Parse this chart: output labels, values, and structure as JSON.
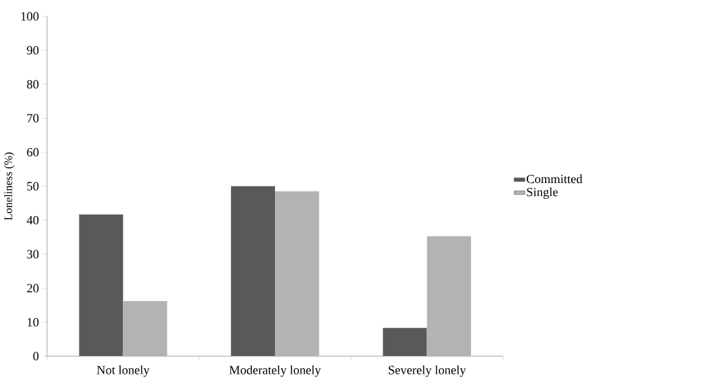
{
  "chart_data": {
    "type": "bar",
    "ylabel": "Loneliness (%)",
    "categories": [
      "Not lonely",
      "Moderately lonely",
      "Severely lonely"
    ],
    "series": [
      {
        "name": "Committed",
        "color": "#595959",
        "values": [
          41.7,
          50.0,
          8.3
        ]
      },
      {
        "name": "Single",
        "color": "#b3b3b3",
        "values": [
          16.2,
          48.5,
          35.3
        ]
      }
    ],
    "ylim": [
      0,
      100
    ],
    "yticks": [
      0,
      10,
      20,
      30,
      40,
      50,
      60,
      70,
      80,
      90,
      100
    ],
    "grid": false,
    "legend": "right"
  }
}
